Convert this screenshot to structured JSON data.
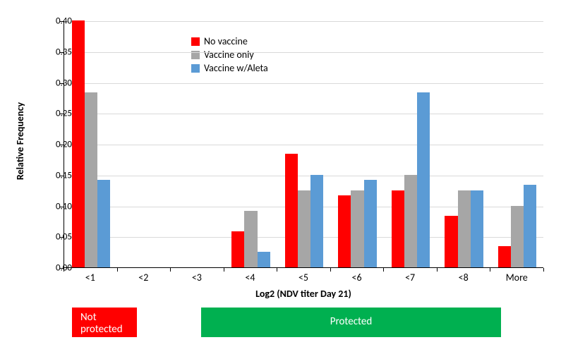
{
  "chart": {
    "type": "bar",
    "background_color": "#ffffff",
    "grid_color": "#d9d9d9",
    "ylabel": "Relative Frequency",
    "ylabel_fontsize": 14,
    "xlabel": "Log2 (NDV titer Day 21)",
    "xlabel_fontsize": 14,
    "ylim": [
      0,
      0.4
    ],
    "ytick_step": 0.05,
    "yticks": [
      "0.00",
      "0.05",
      "0.10",
      "0.15",
      "0.20",
      "0.25",
      "0.30",
      "0.35",
      "0.40"
    ],
    "categories": [
      "<1",
      "<2",
      "<3",
      "<4",
      "<5",
      "<6",
      "<7",
      "<8",
      "More"
    ],
    "series": [
      {
        "name": "No vaccine",
        "color": "#ff0000",
        "values": [
          0.4,
          0.0,
          0.0,
          0.058,
          0.184,
          0.117,
          0.125,
          0.083,
          0.034
        ]
      },
      {
        "name": "Vaccine only",
        "color": "#a6a6a6",
        "values": [
          0.284,
          0.0,
          0.0,
          0.092,
          0.125,
          0.125,
          0.15,
          0.125,
          0.1
        ]
      },
      {
        "name": "Vaccine w/Aleta",
        "color": "#5b9bd5",
        "values": [
          0.142,
          0.0,
          0.0,
          0.025,
          0.15,
          0.142,
          0.284,
          0.125,
          0.134
        ]
      }
    ],
    "bar_group_width": 0.72,
    "tick_fontsize": 13,
    "legend": {
      "position": "top-left-inside",
      "fontsize": 14
    },
    "annotations": [
      {
        "text": "Not protected",
        "bg_color": "#ff0000",
        "text_color": "#ffffff",
        "covers_categories": [
          "<1"
        ]
      },
      {
        "text": "Protected",
        "bg_color": "#00b050",
        "text_color": "#ffffff",
        "covers_categories": [
          "<4",
          "<5",
          "<6",
          "<7",
          "<8",
          "More"
        ]
      }
    ]
  }
}
